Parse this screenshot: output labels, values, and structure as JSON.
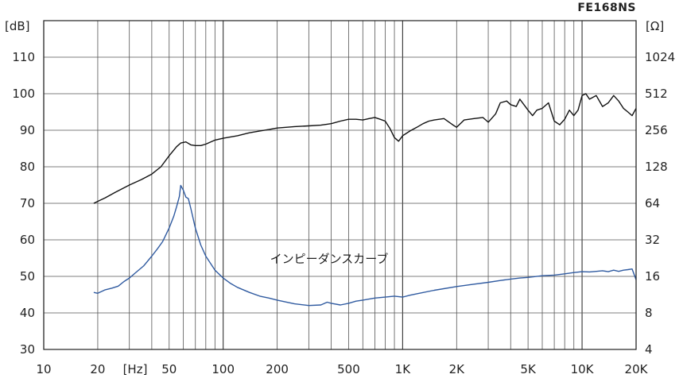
{
  "chart_data": {
    "type": "line",
    "title": "FE168NS",
    "x_scale": "log",
    "xlim": [
      10,
      20000
    ],
    "x_ticks": [
      {
        "value": 10,
        "label": "10"
      },
      {
        "value": 20,
        "label": "20"
      },
      {
        "value": 50,
        "label": "50"
      },
      {
        "value": 100,
        "label": "100"
      },
      {
        "value": 200,
        "label": "200"
      },
      {
        "value": 500,
        "label": "500"
      },
      {
        "value": 1000,
        "label": "1K"
      },
      {
        "value": 2000,
        "label": "2K"
      },
      {
        "value": 5000,
        "label": "5K"
      },
      {
        "value": 10000,
        "label": "10K"
      },
      {
        "value": 20000,
        "label": "20K"
      }
    ],
    "x_unit_label": "[Hz]",
    "ylabel_left": "[dB]",
    "ylim_left": [
      30,
      115
    ],
    "y_ticks_left": [
      30,
      40,
      50,
      60,
      70,
      80,
      90,
      100,
      110
    ],
    "ylabel_right": "[Ω]",
    "ylim_right": [
      4,
      2048
    ],
    "y_scale_right": "log2",
    "y_ticks_right": [
      4,
      8,
      16,
      32,
      64,
      128,
      256,
      512,
      1024
    ],
    "grid": true,
    "annotation": "インピーダンスカーブ",
    "series": [
      {
        "axis": "left",
        "color": "#111111",
        "x": [
          19,
          22,
          25,
          30,
          35,
          40,
          45,
          50,
          55,
          58,
          62,
          66,
          70,
          75,
          80,
          90,
          100,
          120,
          140,
          160,
          180,
          200,
          250,
          300,
          350,
          400,
          450,
          500,
          550,
          600,
          650,
          700,
          750,
          800,
          850,
          900,
          950,
          1000,
          1100,
          1200,
          1300,
          1400,
          1500,
          1700,
          1900,
          2000,
          2200,
          2500,
          2800,
          3000,
          3300,
          3500,
          3800,
          4000,
          4300,
          4500,
          5000,
          5300,
          5600,
          6000,
          6500,
          7000,
          7500,
          8000,
          8500,
          9000,
          9500,
          10000,
          10500,
          11000,
          12000,
          13000,
          14000,
          15000,
          16000,
          17000,
          18000,
          19000,
          20000
        ],
        "y": [
          70,
          71.5,
          73,
          75,
          76.5,
          78,
          80,
          83,
          85.5,
          86.5,
          86.8,
          86,
          85.8,
          85.8,
          86.2,
          87.3,
          87.8,
          88.5,
          89.3,
          89.8,
          90.2,
          90.6,
          91,
          91.2,
          91.4,
          91.8,
          92.5,
          93,
          93,
          92.8,
          93.2,
          93.5,
          93,
          92.5,
          90.5,
          88,
          87,
          88.5,
          89.8,
          90.8,
          91.8,
          92.5,
          92.8,
          93.2,
          91.5,
          90.8,
          92.8,
          93.2,
          93.5,
          92.2,
          94.5,
          97.5,
          98,
          97,
          96.5,
          98.5,
          95.5,
          94,
          95.5,
          96,
          97.5,
          92.5,
          91.5,
          93,
          95.5,
          94,
          95.5,
          99.5,
          100,
          98.5,
          99.5,
          96.5,
          97.5,
          99.5,
          98,
          96,
          95,
          94,
          96
        ]
      },
      {
        "axis": "right",
        "color": "#2f5aa0",
        "x": [
          19,
          20,
          22,
          24,
          26,
          28,
          30,
          33,
          36,
          40,
          43,
          46,
          50,
          53,
          55,
          57,
          58,
          60,
          62,
          64,
          66,
          70,
          75,
          80,
          90,
          100,
          110,
          120,
          140,
          160,
          180,
          200,
          250,
          300,
          350,
          380,
          400,
          450,
          500,
          550,
          600,
          700,
          800,
          900,
          1000,
          1100,
          1200,
          1500,
          2000,
          2500,
          3000,
          3500,
          4000,
          4500,
          5000,
          6000,
          7000,
          8000,
          9000,
          10000,
          11000,
          12000,
          13000,
          14000,
          15000,
          16000,
          17000,
          18000,
          19000,
          20000
        ],
        "y": [
          11.8,
          11.6,
          12.4,
          12.8,
          13.3,
          14.5,
          15.5,
          17.5,
          19.5,
          23.5,
          27,
          31,
          40,
          50,
          60,
          73,
          90,
          82,
          72,
          70,
          58,
          40,
          29,
          23.5,
          18,
          15.5,
          14,
          13,
          11.8,
          11,
          10.6,
          10.2,
          9.5,
          9.2,
          9.3,
          9.8,
          9.6,
          9.3,
          9.6,
          10,
          10.2,
          10.6,
          10.8,
          11,
          10.8,
          11.2,
          11.5,
          12.3,
          13.2,
          13.8,
          14.3,
          14.8,
          15.2,
          15.5,
          15.7,
          16.2,
          16.4,
          16.8,
          17.2,
          17.5,
          17.4,
          17.6,
          17.8,
          17.5,
          18,
          17.6,
          18,
          18.2,
          18.4,
          15
        ]
      }
    ]
  }
}
